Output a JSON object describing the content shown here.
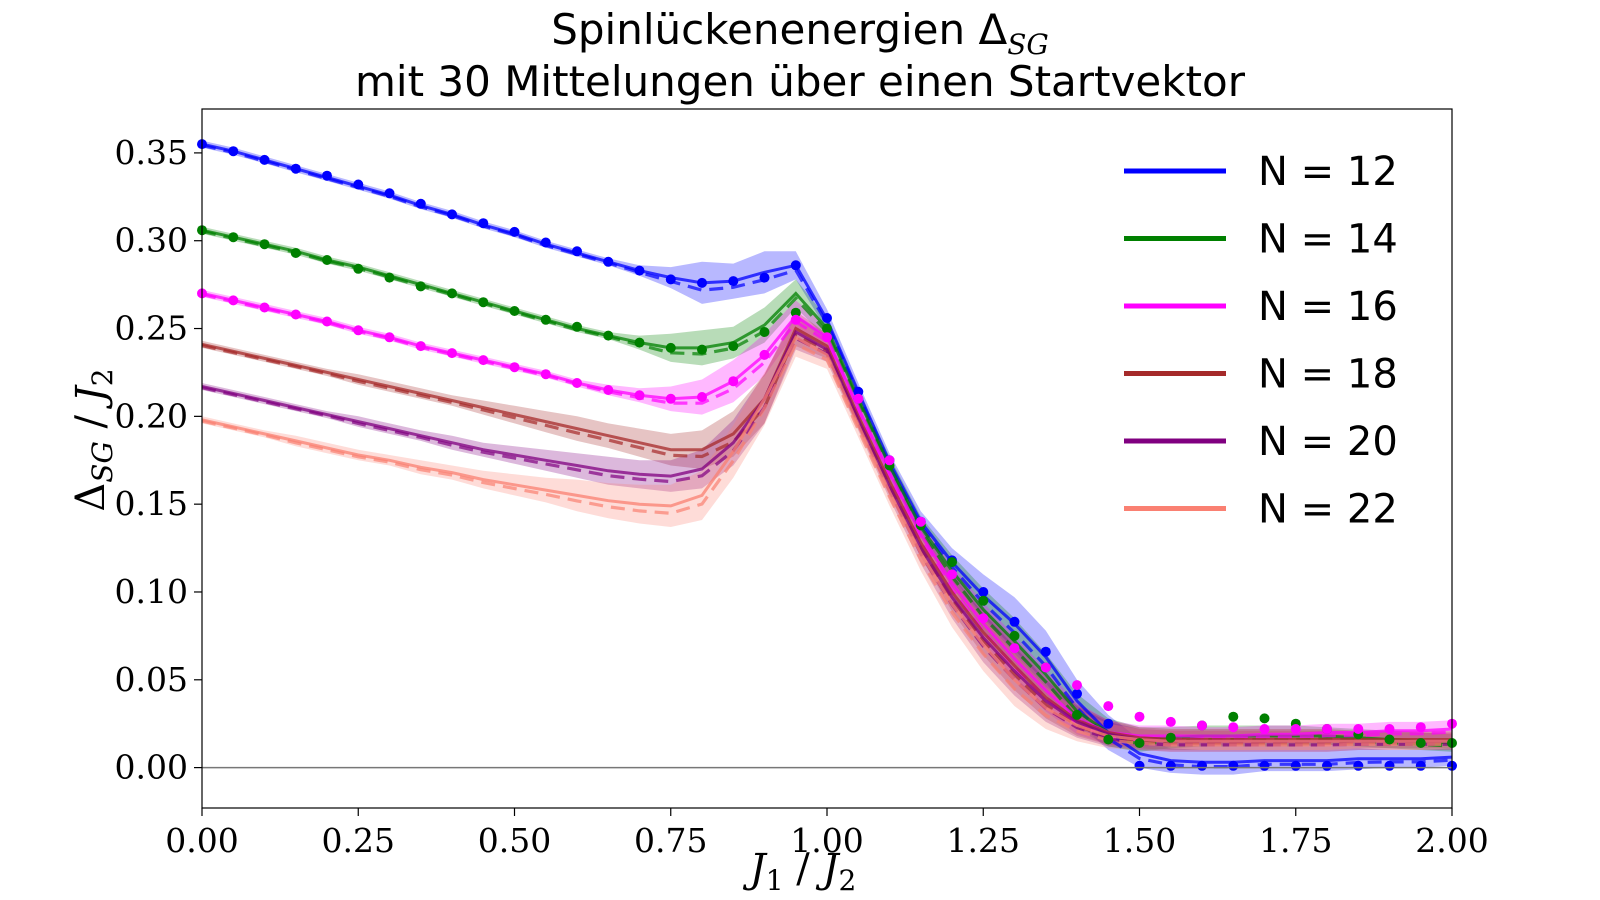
{
  "chart_data": {
    "type": "line",
    "title_line1": "Spinlückenenergien Δ",
    "title_line1_sub": "SG",
    "title_line2": "mit 30 Mittelungen über einen Startvektor",
    "xlabel": "J",
    "xlabel_sub": "1",
    "xlabel_sep": " / ",
    "xlabel_den": "J",
    "xlabel_den_sub": "2",
    "ylabel": "Δ",
    "ylabel_sub": "SG",
    "ylabel_sep": " / ",
    "ylabel_den": "J",
    "ylabel_den_sub": "2",
    "xlim": [
      0,
      2
    ],
    "ylim": [
      -0.023,
      0.375
    ],
    "xticks": [
      0,
      0.25,
      0.5,
      0.75,
      1.0,
      1.25,
      1.5,
      1.75,
      2.0
    ],
    "xtick_labels": [
      "0.00",
      "0.25",
      "0.50",
      "0.75",
      "1.00",
      "1.25",
      "1.50",
      "1.75",
      "2.00"
    ],
    "yticks": [
      0,
      0.05,
      0.1,
      0.15,
      0.2,
      0.25,
      0.3,
      0.35
    ],
    "ytick_labels": [
      "0.00",
      "0.05",
      "0.10",
      "0.15",
      "0.20",
      "0.25",
      "0.30",
      "0.35"
    ],
    "zero_line": true,
    "grid": false,
    "legend_position": "top-right",
    "series": [
      {
        "name": "N = 12",
        "color": "#0000ff",
        "x": [
          0,
          0.05,
          0.1,
          0.15,
          0.2,
          0.25,
          0.3,
          0.35,
          0.4,
          0.45,
          0.5,
          0.55,
          0.6,
          0.65,
          0.7,
          0.75,
          0.8,
          0.85,
          0.9,
          0.95,
          1.0,
          1.05,
          1.1,
          1.15,
          1.2,
          1.25,
          1.3,
          1.35,
          1.4,
          1.45,
          1.5,
          1.55,
          1.6,
          1.65,
          1.7,
          1.75,
          1.8,
          1.85,
          1.9,
          1.95,
          2.0
        ],
        "y": [
          0.355,
          0.351,
          0.346,
          0.341,
          0.336,
          0.331,
          0.326,
          0.32,
          0.315,
          0.309,
          0.304,
          0.298,
          0.293,
          0.288,
          0.283,
          0.279,
          0.276,
          0.277,
          0.282,
          0.286,
          0.255,
          0.214,
          0.174,
          0.14,
          0.117,
          0.098,
          0.082,
          0.063,
          0.038,
          0.02,
          0.008,
          0.004,
          0.003,
          0.003,
          0.004,
          0.004,
          0.004,
          0.005,
          0.005,
          0.005,
          0.006
        ],
        "band": [
          0.002,
          0.002,
          0.002,
          0.002,
          0.002,
          0.002,
          0.002,
          0.002,
          0.002,
          0.002,
          0.002,
          0.002,
          0.002,
          0.002,
          0.003,
          0.006,
          0.012,
          0.01,
          0.012,
          0.008,
          0.006,
          0.005,
          0.005,
          0.006,
          0.008,
          0.012,
          0.015,
          0.015,
          0.012,
          0.01,
          0.008,
          0.007,
          0.007,
          0.007,
          0.006,
          0.006,
          0.006,
          0.006,
          0.005,
          0.005,
          0.005
        ],
        "dots": [
          0.355,
          0.351,
          0.346,
          0.341,
          0.337,
          0.332,
          0.327,
          0.321,
          0.315,
          0.31,
          0.305,
          0.299,
          0.294,
          0.288,
          0.283,
          0.278,
          0.276,
          0.277,
          0.279,
          0.286,
          0.256,
          0.214,
          0.175,
          0.14,
          0.118,
          0.1,
          0.083,
          0.066,
          0.042,
          0.025,
          0.001,
          0.001,
          0.001,
          0.001,
          0.001,
          0.001,
          0.001,
          0.001,
          0.001,
          0.001,
          0.001
        ]
      },
      {
        "name": "N = 14",
        "color": "#008000",
        "x": [
          0,
          0.05,
          0.1,
          0.15,
          0.2,
          0.25,
          0.3,
          0.35,
          0.4,
          0.45,
          0.5,
          0.55,
          0.6,
          0.65,
          0.7,
          0.75,
          0.8,
          0.85,
          0.9,
          0.95,
          1.0,
          1.05,
          1.1,
          1.15,
          1.2,
          1.25,
          1.3,
          1.35,
          1.4,
          1.45,
          1.5,
          1.55,
          1.6,
          1.65,
          1.7,
          1.75,
          1.8,
          1.85,
          1.9,
          1.95,
          2.0
        ],
        "y": [
          0.306,
          0.302,
          0.298,
          0.294,
          0.289,
          0.285,
          0.28,
          0.275,
          0.27,
          0.265,
          0.26,
          0.255,
          0.25,
          0.246,
          0.242,
          0.239,
          0.239,
          0.242,
          0.252,
          0.27,
          0.25,
          0.21,
          0.172,
          0.137,
          0.112,
          0.09,
          0.072,
          0.053,
          0.032,
          0.02,
          0.016,
          0.017,
          0.018,
          0.018,
          0.018,
          0.018,
          0.018,
          0.017,
          0.016,
          0.015,
          0.014
        ],
        "band": [
          0.002,
          0.002,
          0.002,
          0.002,
          0.002,
          0.002,
          0.002,
          0.002,
          0.002,
          0.002,
          0.002,
          0.002,
          0.002,
          0.002,
          0.004,
          0.008,
          0.01,
          0.009,
          0.01,
          0.008,
          0.006,
          0.005,
          0.005,
          0.006,
          0.009,
          0.012,
          0.013,
          0.012,
          0.01,
          0.008,
          0.007,
          0.006,
          0.006,
          0.006,
          0.006,
          0.006,
          0.005,
          0.005,
          0.005,
          0.005,
          0.005
        ],
        "dots": [
          0.306,
          0.302,
          0.298,
          0.293,
          0.289,
          0.284,
          0.279,
          0.274,
          0.27,
          0.265,
          0.26,
          0.255,
          0.251,
          0.246,
          0.242,
          0.239,
          0.238,
          0.24,
          0.248,
          0.259,
          0.25,
          0.21,
          0.172,
          0.138,
          0.117,
          0.095,
          0.075,
          0.057,
          0.03,
          0.016,
          0.014,
          0.017,
          0.024,
          0.029,
          0.028,
          0.025,
          0.022,
          0.019,
          0.016,
          0.014,
          0.014
        ]
      },
      {
        "name": "N = 16",
        "color": "#ff00ff",
        "x": [
          0,
          0.05,
          0.1,
          0.15,
          0.2,
          0.25,
          0.3,
          0.35,
          0.4,
          0.45,
          0.5,
          0.55,
          0.6,
          0.65,
          0.7,
          0.75,
          0.8,
          0.85,
          0.9,
          0.95,
          1.0,
          1.05,
          1.1,
          1.15,
          1.2,
          1.25,
          1.3,
          1.35,
          1.4,
          1.45,
          1.5,
          1.55,
          1.6,
          1.65,
          1.7,
          1.75,
          1.8,
          1.85,
          1.9,
          1.95,
          2.0
        ],
        "y": [
          0.27,
          0.266,
          0.262,
          0.258,
          0.254,
          0.249,
          0.245,
          0.24,
          0.236,
          0.232,
          0.228,
          0.224,
          0.219,
          0.215,
          0.212,
          0.21,
          0.211,
          0.22,
          0.235,
          0.257,
          0.245,
          0.205,
          0.168,
          0.133,
          0.105,
          0.082,
          0.062,
          0.044,
          0.028,
          0.02,
          0.018,
          0.018,
          0.018,
          0.018,
          0.019,
          0.019,
          0.02,
          0.02,
          0.021,
          0.021,
          0.022
        ],
        "band": [
          0.002,
          0.002,
          0.002,
          0.002,
          0.002,
          0.002,
          0.002,
          0.002,
          0.002,
          0.002,
          0.002,
          0.002,
          0.002,
          0.003,
          0.004,
          0.007,
          0.01,
          0.012,
          0.012,
          0.009,
          0.006,
          0.006,
          0.006,
          0.007,
          0.01,
          0.012,
          0.013,
          0.012,
          0.009,
          0.007,
          0.006,
          0.006,
          0.005,
          0.005,
          0.005,
          0.005,
          0.005,
          0.005,
          0.005,
          0.005,
          0.005
        ],
        "dots": [
          0.27,
          0.266,
          0.262,
          0.258,
          0.254,
          0.249,
          0.245,
          0.24,
          0.236,
          0.232,
          0.228,
          0.224,
          0.219,
          0.215,
          0.212,
          0.21,
          0.211,
          0.22,
          0.235,
          0.255,
          0.245,
          0.21,
          0.175,
          0.14,
          0.11,
          0.085,
          0.068,
          0.057,
          0.047,
          0.035,
          0.029,
          0.026,
          0.024,
          0.023,
          0.022,
          0.022,
          0.022,
          0.022,
          0.022,
          0.023,
          0.025
        ]
      },
      {
        "name": "N = 18",
        "color": "#a52a2a",
        "x": [
          0,
          0.05,
          0.1,
          0.15,
          0.2,
          0.25,
          0.3,
          0.35,
          0.4,
          0.45,
          0.5,
          0.55,
          0.6,
          0.65,
          0.7,
          0.75,
          0.8,
          0.85,
          0.9,
          0.95,
          1.0,
          1.05,
          1.1,
          1.15,
          1.2,
          1.25,
          1.3,
          1.35,
          1.4,
          1.45,
          1.5,
          1.55,
          1.6,
          1.65,
          1.7,
          1.75,
          1.8,
          1.85,
          1.9,
          1.95,
          2.0
        ],
        "y": [
          0.241,
          0.237,
          0.233,
          0.229,
          0.225,
          0.221,
          0.217,
          0.213,
          0.209,
          0.205,
          0.201,
          0.197,
          0.193,
          0.189,
          0.185,
          0.181,
          0.181,
          0.19,
          0.21,
          0.25,
          0.24,
          0.2,
          0.163,
          0.128,
          0.1,
          0.077,
          0.058,
          0.04,
          0.027,
          0.02,
          0.017,
          0.016,
          0.016,
          0.016,
          0.016,
          0.016,
          0.016,
          0.016,
          0.016,
          0.016,
          0.016
        ],
        "band": [
          0.002,
          0.002,
          0.002,
          0.002,
          0.002,
          0.003,
          0.003,
          0.003,
          0.003,
          0.004,
          0.005,
          0.006,
          0.007,
          0.007,
          0.008,
          0.009,
          0.011,
          0.013,
          0.014,
          0.01,
          0.007,
          0.006,
          0.007,
          0.008,
          0.011,
          0.013,
          0.014,
          0.012,
          0.009,
          0.007,
          0.006,
          0.006,
          0.006,
          0.006,
          0.006,
          0.006,
          0.006,
          0.005,
          0.005,
          0.005,
          0.005
        ]
      },
      {
        "name": "N = 20",
        "color": "#800080",
        "x": [
          0,
          0.05,
          0.1,
          0.15,
          0.2,
          0.25,
          0.3,
          0.35,
          0.4,
          0.45,
          0.5,
          0.55,
          0.6,
          0.65,
          0.7,
          0.75,
          0.8,
          0.85,
          0.9,
          0.95,
          1.0,
          1.05,
          1.1,
          1.15,
          1.2,
          1.25,
          1.3,
          1.35,
          1.4,
          1.45,
          1.5,
          1.55,
          1.6,
          1.65,
          1.7,
          1.75,
          1.8,
          1.85,
          1.9,
          1.95,
          2.0
        ],
        "y": [
          0.217,
          0.213,
          0.209,
          0.205,
          0.201,
          0.197,
          0.193,
          0.189,
          0.185,
          0.181,
          0.178,
          0.175,
          0.172,
          0.169,
          0.167,
          0.166,
          0.17,
          0.185,
          0.21,
          0.248,
          0.238,
          0.198,
          0.16,
          0.125,
          0.097,
          0.074,
          0.055,
          0.038,
          0.026,
          0.019,
          0.016,
          0.015,
          0.015,
          0.015,
          0.015,
          0.015,
          0.015,
          0.015,
          0.015,
          0.015,
          0.015
        ],
        "band": [
          0.002,
          0.002,
          0.002,
          0.002,
          0.002,
          0.003,
          0.003,
          0.003,
          0.004,
          0.004,
          0.005,
          0.006,
          0.007,
          0.008,
          0.008,
          0.009,
          0.011,
          0.013,
          0.014,
          0.01,
          0.007,
          0.006,
          0.007,
          0.009,
          0.012,
          0.014,
          0.014,
          0.012,
          0.009,
          0.007,
          0.006,
          0.006,
          0.006,
          0.006,
          0.006,
          0.006,
          0.006,
          0.005,
          0.005,
          0.005,
          0.005
        ]
      },
      {
        "name": "N = 22",
        "color": "#fa8072",
        "x": [
          0,
          0.05,
          0.1,
          0.15,
          0.2,
          0.25,
          0.3,
          0.35,
          0.4,
          0.45,
          0.5,
          0.55,
          0.6,
          0.65,
          0.7,
          0.75,
          0.8,
          0.85,
          0.9,
          0.95,
          1.0,
          1.05,
          1.1,
          1.15,
          1.2,
          1.25,
          1.3,
          1.35,
          1.4,
          1.45,
          1.5,
          1.55,
          1.6,
          1.65,
          1.7,
          1.75,
          1.8,
          1.85,
          1.9,
          1.95,
          2.0
        ],
        "y": [
          0.198,
          0.194,
          0.19,
          0.186,
          0.182,
          0.178,
          0.175,
          0.171,
          0.168,
          0.164,
          0.161,
          0.158,
          0.155,
          0.152,
          0.15,
          0.149,
          0.155,
          0.18,
          0.21,
          0.245,
          0.235,
          0.195,
          0.157,
          0.122,
          0.093,
          0.07,
          0.05,
          0.034,
          0.024,
          0.018,
          0.016,
          0.015,
          0.015,
          0.015,
          0.015,
          0.015,
          0.015,
          0.015,
          0.015,
          0.015,
          0.015
        ],
        "band": [
          0.002,
          0.002,
          0.002,
          0.003,
          0.003,
          0.003,
          0.003,
          0.004,
          0.004,
          0.005,
          0.006,
          0.007,
          0.009,
          0.01,
          0.011,
          0.012,
          0.014,
          0.015,
          0.015,
          0.011,
          0.008,
          0.007,
          0.008,
          0.01,
          0.013,
          0.015,
          0.015,
          0.012,
          0.009,
          0.007,
          0.006,
          0.006,
          0.006,
          0.006,
          0.006,
          0.006,
          0.006,
          0.005,
          0.005,
          0.005,
          0.005
        ]
      }
    ]
  }
}
